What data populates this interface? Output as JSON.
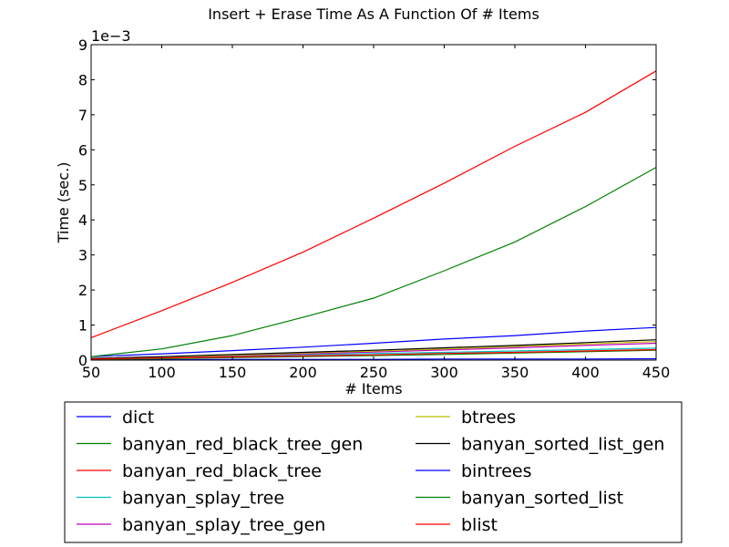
{
  "chart_data": {
    "type": "line",
    "title": "Insert + Erase Time As A Function Of # Items",
    "xlabel": "# Items",
    "ylabel": "Time (sec.)",
    "y_offset_label": "1e−3",
    "xlim": [
      50,
      450
    ],
    "ylim": [
      0,
      9
    ],
    "x_ticks": [
      50,
      100,
      150,
      200,
      250,
      300,
      350,
      400,
      450
    ],
    "y_ticks": [
      0,
      1,
      2,
      3,
      4,
      5,
      6,
      7,
      8,
      9
    ],
    "y_tick_labels": [
      "0",
      "1",
      "2",
      "3",
      "4",
      "5",
      "6",
      "7",
      "8",
      "9"
    ],
    "x": [
      50,
      100,
      150,
      200,
      250,
      300,
      350,
      400,
      450
    ],
    "legend_location": "below",
    "series": [
      {
        "name": "dict",
        "color": "#0000ff",
        "values": [
          0.1,
          0.18,
          0.27,
          0.37,
          0.48,
          0.6,
          0.7,
          0.83,
          0.93
        ]
      },
      {
        "name": "banyan_red_black_tree_gen",
        "color": "#008000",
        "values": [
          0.1,
          0.32,
          0.7,
          1.22,
          1.77,
          2.55,
          3.37,
          4.38,
          5.5
        ]
      },
      {
        "name": "banyan_red_black_tree",
        "color": "#ff0000",
        "values": [
          0.64,
          1.41,
          2.22,
          3.08,
          4.05,
          5.05,
          6.1,
          7.07,
          8.25
        ]
      },
      {
        "name": "banyan_splay_tree",
        "color": "#00bfbf",
        "values": [
          0.03,
          0.07,
          0.11,
          0.15,
          0.19,
          0.22,
          0.26,
          0.3,
          0.34
        ]
      },
      {
        "name": "banyan_splay_tree_gen",
        "color": "#bf00bf",
        "values": [
          0.04,
          0.08,
          0.13,
          0.18,
          0.23,
          0.29,
          0.35,
          0.42,
          0.48
        ]
      },
      {
        "name": "btrees",
        "color": "#bfbf00",
        "values": [
          0.04,
          0.09,
          0.14,
          0.2,
          0.26,
          0.32,
          0.39,
          0.46,
          0.53
        ]
      },
      {
        "name": "banyan_sorted_list_gen",
        "color": "#000000",
        "values": [
          0.05,
          0.1,
          0.16,
          0.22,
          0.28,
          0.35,
          0.42,
          0.5,
          0.58
        ]
      },
      {
        "name": "bintrees",
        "color": "#0000ff",
        "values": [
          0.01,
          0.01,
          0.02,
          0.02,
          0.02,
          0.03,
          0.03,
          0.03,
          0.04
        ]
      },
      {
        "name": "banyan_sorted_list",
        "color": "#008000",
        "values": [
          0.02,
          0.04,
          0.07,
          0.1,
          0.13,
          0.16,
          0.2,
          0.24,
          0.28
        ]
      },
      {
        "name": "blist",
        "color": "#ff0000",
        "values": [
          0.03,
          0.06,
          0.09,
          0.12,
          0.15,
          0.19,
          0.22,
          0.26,
          0.3
        ]
      }
    ]
  }
}
